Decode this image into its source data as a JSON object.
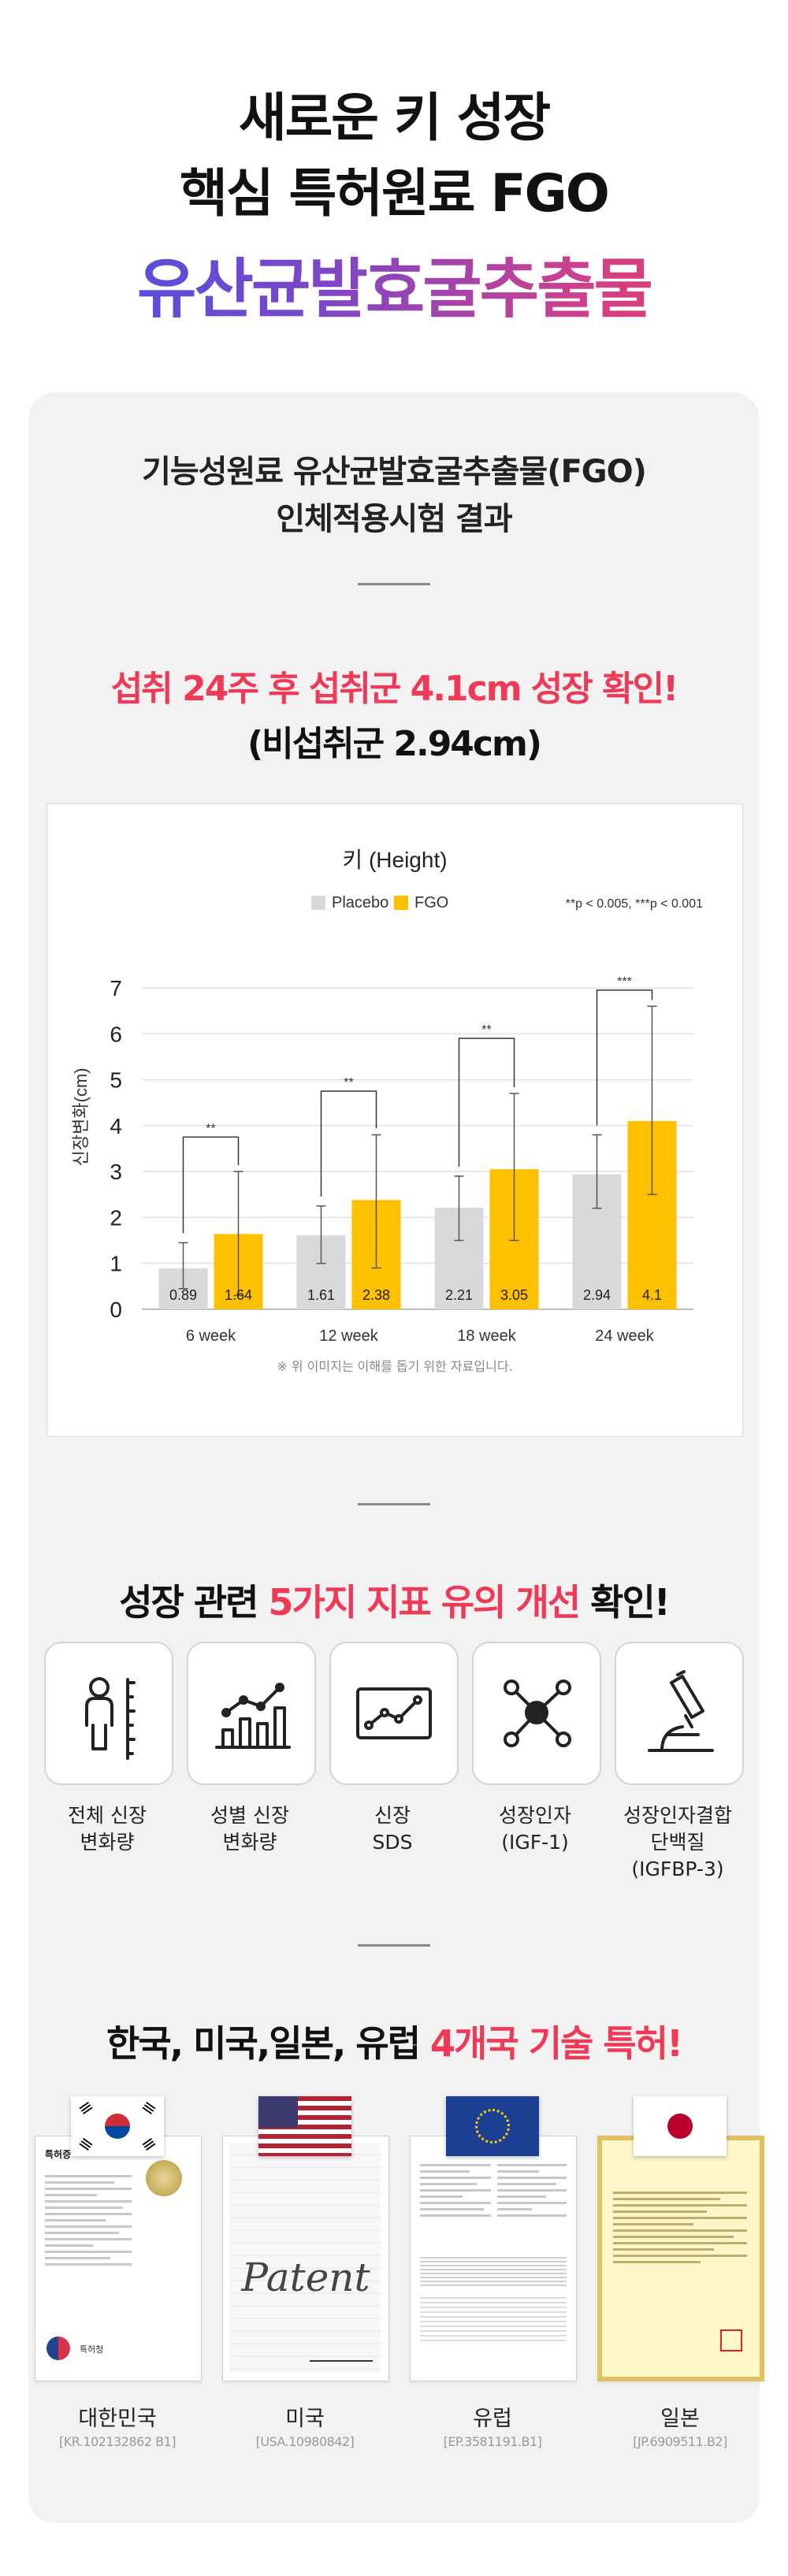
{
  "hero": {
    "line1": "새로운 키 성장",
    "line2": "핵심 특허원료 FGO",
    "line3": "유산균발효굴추출물"
  },
  "study": {
    "title_line1": "기능성원료 유산균발효굴추출물(FGO)",
    "title_line2": "인체적용시험 결과",
    "highlight": "섭취 24주 후 섭취군 4.1cm 성장 확인!",
    "subhighlight": "(비섭취군 2.94cm)",
    "note": "※ 위 이미지는 이해를 돕기 위한 자료입니다."
  },
  "chart_data": {
    "type": "bar",
    "title": "키 (Height)",
    "ylabel": "신장변화(cm)",
    "xlabel": "",
    "ylim": [
      0,
      7
    ],
    "yticks": [
      "0",
      "1",
      "2",
      "3",
      "4",
      "5",
      "6",
      "7"
    ],
    "grid": true,
    "legend_position": "top-left",
    "significance_note": "**p < 0.005, ***p < 0.001",
    "categories": [
      "6 week",
      "12 week",
      "18 week",
      "24 week"
    ],
    "series": [
      {
        "name": "Placebo",
        "color": "#d9d9d9",
        "values": [
          0.89,
          1.61,
          2.21,
          2.94
        ],
        "labels": [
          "0.89",
          "1.61",
          "2.21",
          "2.94"
        ],
        "error_low": [
          0.45,
          1.0,
          1.5,
          2.2
        ],
        "error_high": [
          1.45,
          2.25,
          2.9,
          3.8
        ]
      },
      {
        "name": "FGO",
        "color": "#ffc000",
        "values": [
          1.64,
          2.38,
          3.05,
          4.1
        ],
        "labels": [
          "1.64",
          "2.38",
          "3.05",
          "4.1"
        ],
        "error_low": [
          0.3,
          0.9,
          1.5,
          2.5
        ],
        "error_high": [
          3.0,
          3.8,
          4.7,
          6.6
        ]
      }
    ],
    "significance": [
      {
        "marker": "**",
        "level": 3.75
      },
      {
        "marker": "**",
        "level": 4.75
      },
      {
        "marker": "**",
        "level": 5.9
      },
      {
        "marker": "***",
        "level": 6.95
      }
    ]
  },
  "indicators": {
    "heading_pre": "성장 관련 ",
    "heading_hl": "5가지 지표 유의 개선",
    "heading_post": " 확인!",
    "items": [
      {
        "icon": "body-height-icon",
        "line1": "전체 신장",
        "line2": "변화량",
        "line3": ""
      },
      {
        "icon": "rising-bar-chart-icon",
        "line1": "성별 신장",
        "line2": "변화량",
        "line3": ""
      },
      {
        "icon": "line-chart-screen-icon",
        "line1": "신장",
        "line2": "SDS",
        "line3": ""
      },
      {
        "icon": "molecule-icon",
        "line1": "성장인자",
        "line2": "(IGF-1)",
        "line3": ""
      },
      {
        "icon": "microscope-icon",
        "line1": "성장인자결합",
        "line2": "단백질",
        "line3": "(IGFBP-3)"
      }
    ]
  },
  "patents": {
    "heading_pre": "한국, 미국,일본, 유럽 ",
    "heading_hl": "4개국 기술 특허!",
    "items": [
      {
        "country": "대한민국",
        "number": "[KR.102132862 B1]",
        "flag": "korea-flag-icon",
        "doc_title": "특허증",
        "doc_issuer": "특허청"
      },
      {
        "country": "미국",
        "number": "[USA.10980842]",
        "flag": "usa-flag-icon",
        "doc_title": "Patent",
        "doc_issuer": ""
      },
      {
        "country": "유럽",
        "number": "[EP.3581191.B1]",
        "flag": "eu-flag-icon",
        "doc_title": "",
        "doc_issuer": ""
      },
      {
        "country": "일본",
        "number": "[JP.6909511.B2]",
        "flag": "japan-flag-icon",
        "doc_title": "",
        "doc_issuer": ""
      }
    ]
  }
}
